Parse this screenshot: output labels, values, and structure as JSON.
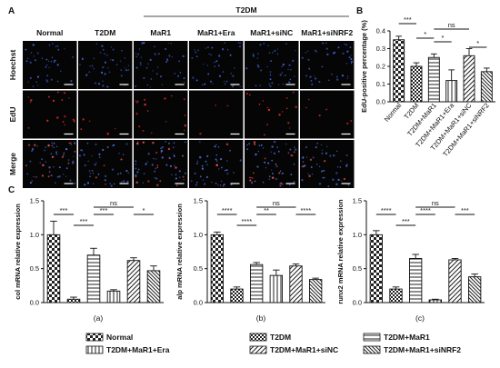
{
  "colors": {
    "hoechst": "#3a5fd0",
    "edu": "#d92626",
    "merge_blue": "#4a6ee0",
    "merge_red": "#e24a4a",
    "axis": "#111111"
  },
  "panelA": {
    "letter": "A",
    "group_header": "T2DM",
    "columns": [
      "Normal",
      "T2DM",
      "MaR1",
      "MaR1+Era",
      "MaR1+siNC",
      "MaR1+siNRF2"
    ],
    "rows": [
      "Hoechst",
      "EdU",
      "Merge"
    ],
    "red_levels": [
      0.55,
      0.15,
      0.6,
      0.1,
      0.55,
      0.2
    ]
  },
  "panelB": {
    "letter": "B",
    "ylabel": "EdU-positive percentage (%)",
    "yticks": [
      "0.0",
      "0.1",
      "0.2",
      "0.3",
      "0.4"
    ],
    "sig": [
      {
        "label": "***",
        "from": 0,
        "to": 1
      },
      {
        "label": "*",
        "from": 1,
        "to": 2
      },
      {
        "label": "*",
        "from": 2,
        "to": 3
      },
      {
        "label": "ns",
        "from": 2,
        "to": 4
      },
      {
        "label": "*",
        "from": 4,
        "to": 5
      }
    ]
  },
  "panelC": {
    "letter": "C",
    "sublabels": [
      "(a)",
      "(b)",
      "(c)"
    ],
    "sig": [
      [
        {
          "label": "***",
          "from": 0,
          "to": 1
        },
        {
          "label": "***",
          "from": 1,
          "to": 2
        },
        {
          "label": "***",
          "from": 2,
          "to": 3
        },
        {
          "label": "ns",
          "from": 2,
          "to": 4
        },
        {
          "label": "*",
          "from": 4,
          "to": 5
        }
      ],
      [
        {
          "label": "****",
          "from": 0,
          "to": 1
        },
        {
          "label": "****",
          "from": 1,
          "to": 2
        },
        {
          "label": "**",
          "from": 2,
          "to": 3
        },
        {
          "label": "ns",
          "from": 2,
          "to": 4
        },
        {
          "label": "****",
          "from": 4,
          "to": 5
        }
      ],
      [
        {
          "label": "****",
          "from": 0,
          "to": 1
        },
        {
          "label": "***",
          "from": 1,
          "to": 2
        },
        {
          "label": "****",
          "from": 2,
          "to": 3
        },
        {
          "label": "ns",
          "from": 2,
          "to": 4
        },
        {
          "label": "***",
          "from": 4,
          "to": 5
        }
      ]
    ]
  },
  "legend": {
    "entries": [
      "Normal",
      "T2DM",
      "T2DM+MaR1",
      "T2DM+MaR1+Era",
      "T2DM+MaR1+siNC",
      "T2DM+MaR1+siNRF2"
    ],
    "patterns": [
      "check",
      "check-small",
      "hlines",
      "vlines",
      "diag-right",
      "diag-left"
    ]
  },
  "chart_data": [
    {
      "type": "bar",
      "panel": "B",
      "categories": [
        "Normal",
        "T2DM",
        "T2DM+MaR1",
        "T2DM+MaR1+Era",
        "T2DM+MaR1+siNC",
        "T2DM+MaR1+siNRF2"
      ],
      "values": [
        0.35,
        0.2,
        0.25,
        0.12,
        0.26,
        0.17
      ],
      "errors": [
        0.02,
        0.02,
        0.02,
        0.06,
        0.04,
        0.02
      ],
      "xlabel": "",
      "ylabel": "EdU-positive percentage (%)",
      "ylim": [
        0,
        0.4
      ]
    },
    {
      "type": "bar",
      "panel": "C(a)",
      "categories": [
        "Normal",
        "T2DM",
        "T2DM+MaR1",
        "T2DM+MaR1+Era",
        "T2DM+MaR1+siNC",
        "T2DM+MaR1+siNRF2"
      ],
      "values": [
        1.0,
        0.05,
        0.7,
        0.17,
        0.62,
        0.47
      ],
      "errors": [
        0.2,
        0.03,
        0.1,
        0.02,
        0.04,
        0.07
      ],
      "xlabel": "",
      "ylabel": "col mRNA relative expression",
      "ylim": [
        0,
        1.5
      ],
      "yticks": [
        "0.0",
        "0.5",
        "1.0",
        "1.5"
      ]
    },
    {
      "type": "bar",
      "panel": "C(b)",
      "categories": [
        "Normal",
        "T2DM",
        "T2DM+MaR1",
        "T2DM+MaR1+Era",
        "T2DM+MaR1+siNC",
        "T2DM+MaR1+siNRF2"
      ],
      "values": [
        1.0,
        0.2,
        0.56,
        0.4,
        0.54,
        0.34
      ],
      "errors": [
        0.04,
        0.03,
        0.03,
        0.08,
        0.03,
        0.02
      ],
      "xlabel": "",
      "ylabel": "alp mRNA relative expression",
      "ylim": [
        0,
        1.5
      ],
      "yticks": [
        "0.0",
        "0.5",
        "1.0",
        "1.5"
      ]
    },
    {
      "type": "bar",
      "panel": "C(c)",
      "categories": [
        "Normal",
        "T2DM",
        "T2DM+MaR1",
        "T2DM+MaR1+Era",
        "T2DM+MaR1+siNC",
        "T2DM+MaR1+siNRF2"
      ],
      "values": [
        1.0,
        0.2,
        0.65,
        0.04,
        0.63,
        0.38
      ],
      "errors": [
        0.06,
        0.03,
        0.06,
        0.01,
        0.02,
        0.04
      ],
      "xlabel": "",
      "ylabel": "runx2 mRNA relative expression",
      "ylim": [
        0,
        1.5
      ],
      "yticks": [
        "0.0",
        "0.5",
        "1.0",
        "1.5"
      ]
    }
  ]
}
